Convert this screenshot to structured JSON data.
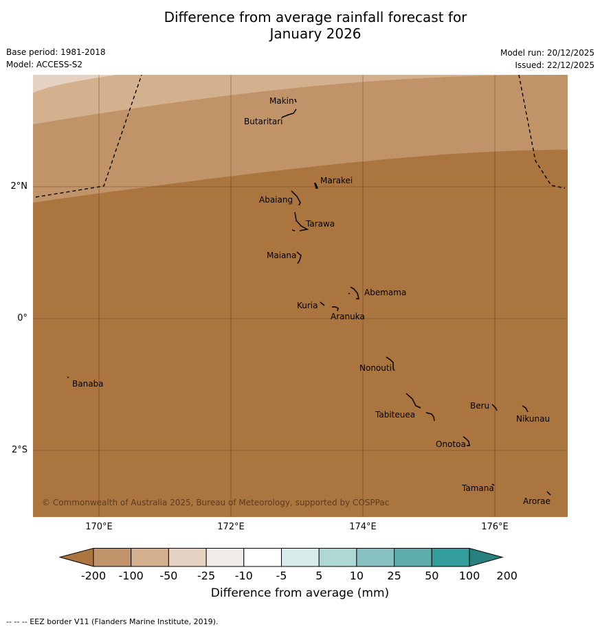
{
  "title_line1": "Difference from average rainfall forecast for",
  "title_line2": "January 2026",
  "base_period": "Base period: 1981-2018",
  "model": "Model: ACCESS-S2",
  "model_run": "Model run: 20/12/2025",
  "issued": "Issued: 22/12/2025",
  "copyright": "© Commonwealth of Australia 2025, Bureau of Meteorology, supported by COSPPac",
  "lat_ticks": [
    "2°N",
    "0°",
    "2°S"
  ],
  "lon_ticks": [
    "170°E",
    "172°E",
    "174°E",
    "176°E"
  ],
  "islands": [
    {
      "name": "Makin",
      "lon": 172.95,
      "lat": 3.35
    },
    {
      "name": "Butaritari",
      "lon": 172.9,
      "lat": 3.05
    },
    {
      "name": "Marakei",
      "lon": 173.27,
      "lat": 2.02
    },
    {
      "name": "Abaiang",
      "lon": 172.97,
      "lat": 1.8
    },
    {
      "name": "Tarawa",
      "lon": 173.05,
      "lat": 1.42
    },
    {
      "name": "Maiana",
      "lon": 173.0,
      "lat": 0.92
    },
    {
      "name": "Abemama",
      "lon": 173.9,
      "lat": 0.38
    },
    {
      "name": "Kuria",
      "lon": 173.4,
      "lat": 0.22
    },
    {
      "name": "Aranuka",
      "lon": 173.62,
      "lat": 0.16
    },
    {
      "name": "Nonouti",
      "lon": 174.4,
      "lat": -0.68
    },
    {
      "name": "Banaba",
      "lon": 169.55,
      "lat": -0.87
    },
    {
      "name": "Tabiteuea",
      "lon": 174.8,
      "lat": -1.3
    },
    {
      "name": "Beru",
      "lon": 175.98,
      "lat": -1.32
    },
    {
      "name": "Nikunau",
      "lon": 176.45,
      "lat": -1.35
    },
    {
      "name": "Onotoa",
      "lon": 175.58,
      "lat": -1.82
    },
    {
      "name": "Tamana",
      "lon": 175.98,
      "lat": -2.5
    },
    {
      "name": "Arorae",
      "lon": 176.82,
      "lat": -2.63
    }
  ],
  "colorbar": {
    "title": "Difference from average (mm)",
    "labels": [
      "-200",
      "-100",
      "-50",
      "-25",
      "-10",
      "-5",
      "5",
      "10",
      "25",
      "50",
      "100",
      "200"
    ],
    "colors": [
      "#ab753f",
      "#c09369",
      "#d3b08e",
      "#e5d2c2",
      "#f0ece8",
      "#ffffff",
      "#d6ebea",
      "#aed7d6",
      "#86c0bf",
      "#5eadac",
      "#339d9c",
      "#28807f"
    ]
  },
  "footnote": "--  --  -- EEZ border V11 (Flanders Marine Institute, 2019)."
}
